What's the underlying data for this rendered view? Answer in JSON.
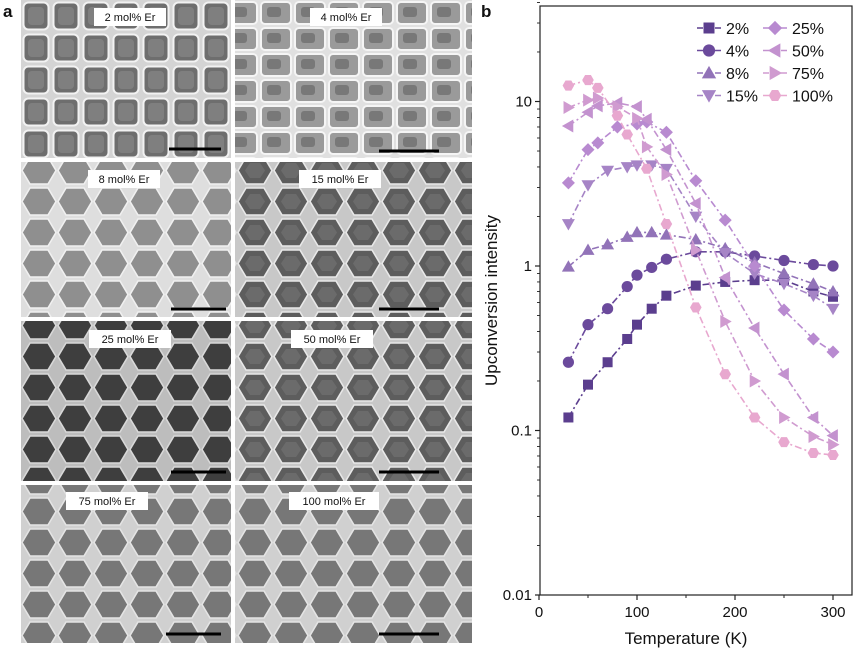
{
  "panels": {
    "a": "a",
    "b": "b"
  },
  "tem_images": [
    {
      "label": "2 mol% Er"
    },
    {
      "label": "4 mol% Er"
    },
    {
      "label": "8 mol% Er"
    },
    {
      "label": "15 mol% Er"
    },
    {
      "label": "25 mol% Er"
    },
    {
      "label": "50 mol% Er"
    },
    {
      "label": "75 mol% Er"
    },
    {
      "label": "100 mol% Er"
    }
  ],
  "chart_data": {
    "type": "line",
    "title": "",
    "xlabel": "Temperature (K)",
    "ylabel": "Upconversion intensity",
    "xlim": [
      0,
      320
    ],
    "ylim": [
      0.01,
      40
    ],
    "yscale": "log",
    "x_ticks": [
      0,
      100,
      200,
      300
    ],
    "y_ticks": [
      0.01,
      0.1,
      1,
      10
    ],
    "y_tick_labels": [
      "0.01",
      "0.1",
      "1",
      "10"
    ],
    "legend_position": "top-right",
    "series": [
      {
        "name": "2%",
        "marker": "square",
        "color": "#5b3e8e",
        "x": [
          30,
          50,
          70,
          90,
          100,
          115,
          130,
          160,
          190,
          220,
          250,
          280,
          300
        ],
        "y": [
          0.12,
          0.19,
          0.26,
          0.36,
          0.44,
          0.55,
          0.66,
          0.76,
          0.8,
          0.82,
          0.82,
          0.7,
          0.65
        ]
      },
      {
        "name": "4%",
        "marker": "circle",
        "color": "#6b4a9c",
        "x": [
          30,
          50,
          70,
          90,
          100,
          115,
          130,
          160,
          190,
          220,
          250,
          280,
          300
        ],
        "y": [
          0.26,
          0.44,
          0.55,
          0.75,
          0.88,
          0.98,
          1.1,
          1.22,
          1.22,
          1.15,
          1.08,
          1.02,
          1.0
        ]
      },
      {
        "name": "8%",
        "marker": "triangle-up",
        "color": "#9273b8",
        "x": [
          30,
          50,
          70,
          90,
          100,
          115,
          130,
          160,
          190,
          220,
          250,
          280,
          300
        ],
        "y": [
          0.99,
          1.25,
          1.35,
          1.5,
          1.6,
          1.6,
          1.55,
          1.45,
          1.28,
          1.05,
          0.9,
          0.78,
          0.7
        ]
      },
      {
        "name": "15%",
        "marker": "triangle-down",
        "color": "#a684c6",
        "x": [
          30,
          50,
          70,
          90,
          100,
          115,
          130,
          160,
          190,
          220,
          250,
          280,
          300
        ],
        "y": [
          1.8,
          3.1,
          3.8,
          4.0,
          4.1,
          4.1,
          3.9,
          2.0,
          1.2,
          0.9,
          0.78,
          0.66,
          0.55
        ]
      },
      {
        "name": "25%",
        "marker": "diamond",
        "color": "#b88ad0",
        "x": [
          30,
          50,
          60,
          80,
          100,
          110,
          130,
          160,
          190,
          220,
          250,
          280,
          300
        ],
        "y": [
          3.2,
          5.1,
          5.6,
          7.0,
          7.3,
          7.5,
          6.5,
          3.3,
          1.9,
          1.0,
          0.54,
          0.36,
          0.3
        ]
      },
      {
        "name": "50%",
        "marker": "triangle-left",
        "color": "#c392cf",
        "x": [
          30,
          50,
          60,
          80,
          100,
          110,
          130,
          160,
          190,
          220,
          250,
          280,
          300
        ],
        "y": [
          7.1,
          8.6,
          9.4,
          9.8,
          9.3,
          7.8,
          5.1,
          2.4,
          0.85,
          0.42,
          0.22,
          0.12,
          0.093
        ]
      },
      {
        "name": "75%",
        "marker": "triangle-right",
        "color": "#d09bd0",
        "x": [
          30,
          50,
          60,
          80,
          100,
          110,
          130,
          160,
          190,
          220,
          250,
          280,
          300
        ],
        "y": [
          9.2,
          10.2,
          10.5,
          9.3,
          7.9,
          5.3,
          3.6,
          1.25,
          0.46,
          0.2,
          0.12,
          0.092,
          0.082
        ]
      },
      {
        "name": "100%",
        "marker": "hexagon",
        "color": "#e8a8cf",
        "x": [
          30,
          50,
          60,
          80,
          90,
          110,
          130,
          160,
          190,
          220,
          250,
          280,
          300
        ],
        "y": [
          12.5,
          13.5,
          12.1,
          8.2,
          6.3,
          3.9,
          1.8,
          0.56,
          0.22,
          0.12,
          0.085,
          0.073,
          0.071
        ]
      }
    ]
  }
}
